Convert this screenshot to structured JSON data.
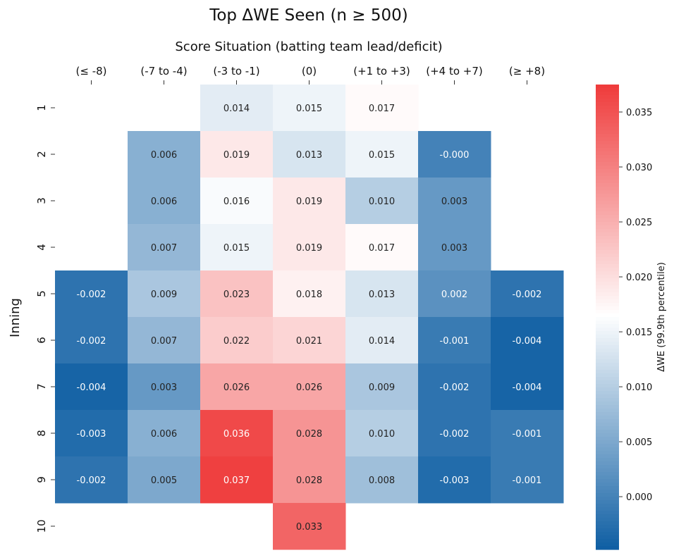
{
  "chart_data": {
    "type": "heatmap",
    "title": "Top ΔWE Seen (n ≥ 500)",
    "xlabel": "Score Situation (batting team lead/deficit)",
    "ylabel": "Inning",
    "x_categories": [
      "(≤ -8)",
      "(-7 to -4)",
      "(-3 to -1)",
      "(0)",
      "(+1 to +3)",
      "(+4 to +7)",
      "(≥ +8)"
    ],
    "y_categories": [
      "1",
      "2",
      "3",
      "4",
      "5",
      "6",
      "7",
      "8",
      "9",
      "10"
    ],
    "values": [
      [
        null,
        null,
        0.014,
        0.015,
        0.017,
        null,
        null
      ],
      [
        null,
        0.006,
        0.019,
        0.013,
        0.015,
        -0.0,
        null
      ],
      [
        null,
        0.006,
        0.016,
        0.019,
        0.01,
        0.003,
        null
      ],
      [
        null,
        0.007,
        0.015,
        0.019,
        0.017,
        0.003,
        null
      ],
      [
        -0.002,
        0.009,
        0.023,
        0.018,
        0.013,
        0.002,
        -0.002
      ],
      [
        -0.002,
        0.007,
        0.022,
        0.021,
        0.014,
        -0.001,
        -0.004
      ],
      [
        -0.004,
        0.003,
        0.026,
        0.026,
        0.009,
        -0.002,
        -0.004
      ],
      [
        -0.003,
        0.006,
        0.036,
        0.028,
        0.01,
        -0.002,
        -0.001
      ],
      [
        -0.002,
        0.005,
        0.037,
        0.028,
        0.008,
        -0.003,
        -0.001
      ],
      [
        null,
        null,
        null,
        0.033,
        null,
        null,
        null
      ]
    ],
    "labels": [
      [
        null,
        null,
        "0.014",
        "0.015",
        "0.017",
        null,
        null
      ],
      [
        null,
        "0.006",
        "0.019",
        "0.013",
        "0.015",
        "-0.000",
        null
      ],
      [
        null,
        "0.006",
        "0.016",
        "0.019",
        "0.010",
        "0.003",
        null
      ],
      [
        null,
        "0.007",
        "0.015",
        "0.019",
        "0.017",
        "0.003",
        null
      ],
      [
        "-0.002",
        "0.009",
        "0.023",
        "0.018",
        "0.013",
        "0.002",
        "-0.002"
      ],
      [
        "-0.002",
        "0.007",
        "0.022",
        "0.021",
        "0.014",
        "-0.001",
        "-0.004"
      ],
      [
        "-0.004",
        "0.003",
        "0.026",
        "0.026",
        "0.009",
        "-0.002",
        "-0.004"
      ],
      [
        "-0.003",
        "0.006",
        "0.036",
        "0.028",
        "0.010",
        "-0.002",
        "-0.001"
      ],
      [
        "-0.002",
        "0.005",
        "0.037",
        "0.028",
        "0.008",
        "-0.003",
        "-0.001"
      ],
      [
        null,
        null,
        null,
        "0.033",
        null,
        null,
        null
      ]
    ],
    "colorbar": {
      "label": "ΔWE (99.9th percentile)",
      "vmin": -0.0048,
      "vmax": 0.0375,
      "center": 0.0165,
      "ticks": [
        "0.000",
        "0.005",
        "0.010",
        "0.015",
        "0.020",
        "0.025",
        "0.030",
        "0.035"
      ],
      "low_color": "#0e5ea3",
      "mid_color": "#ffffff",
      "high_color": "#ef3b3b"
    }
  }
}
